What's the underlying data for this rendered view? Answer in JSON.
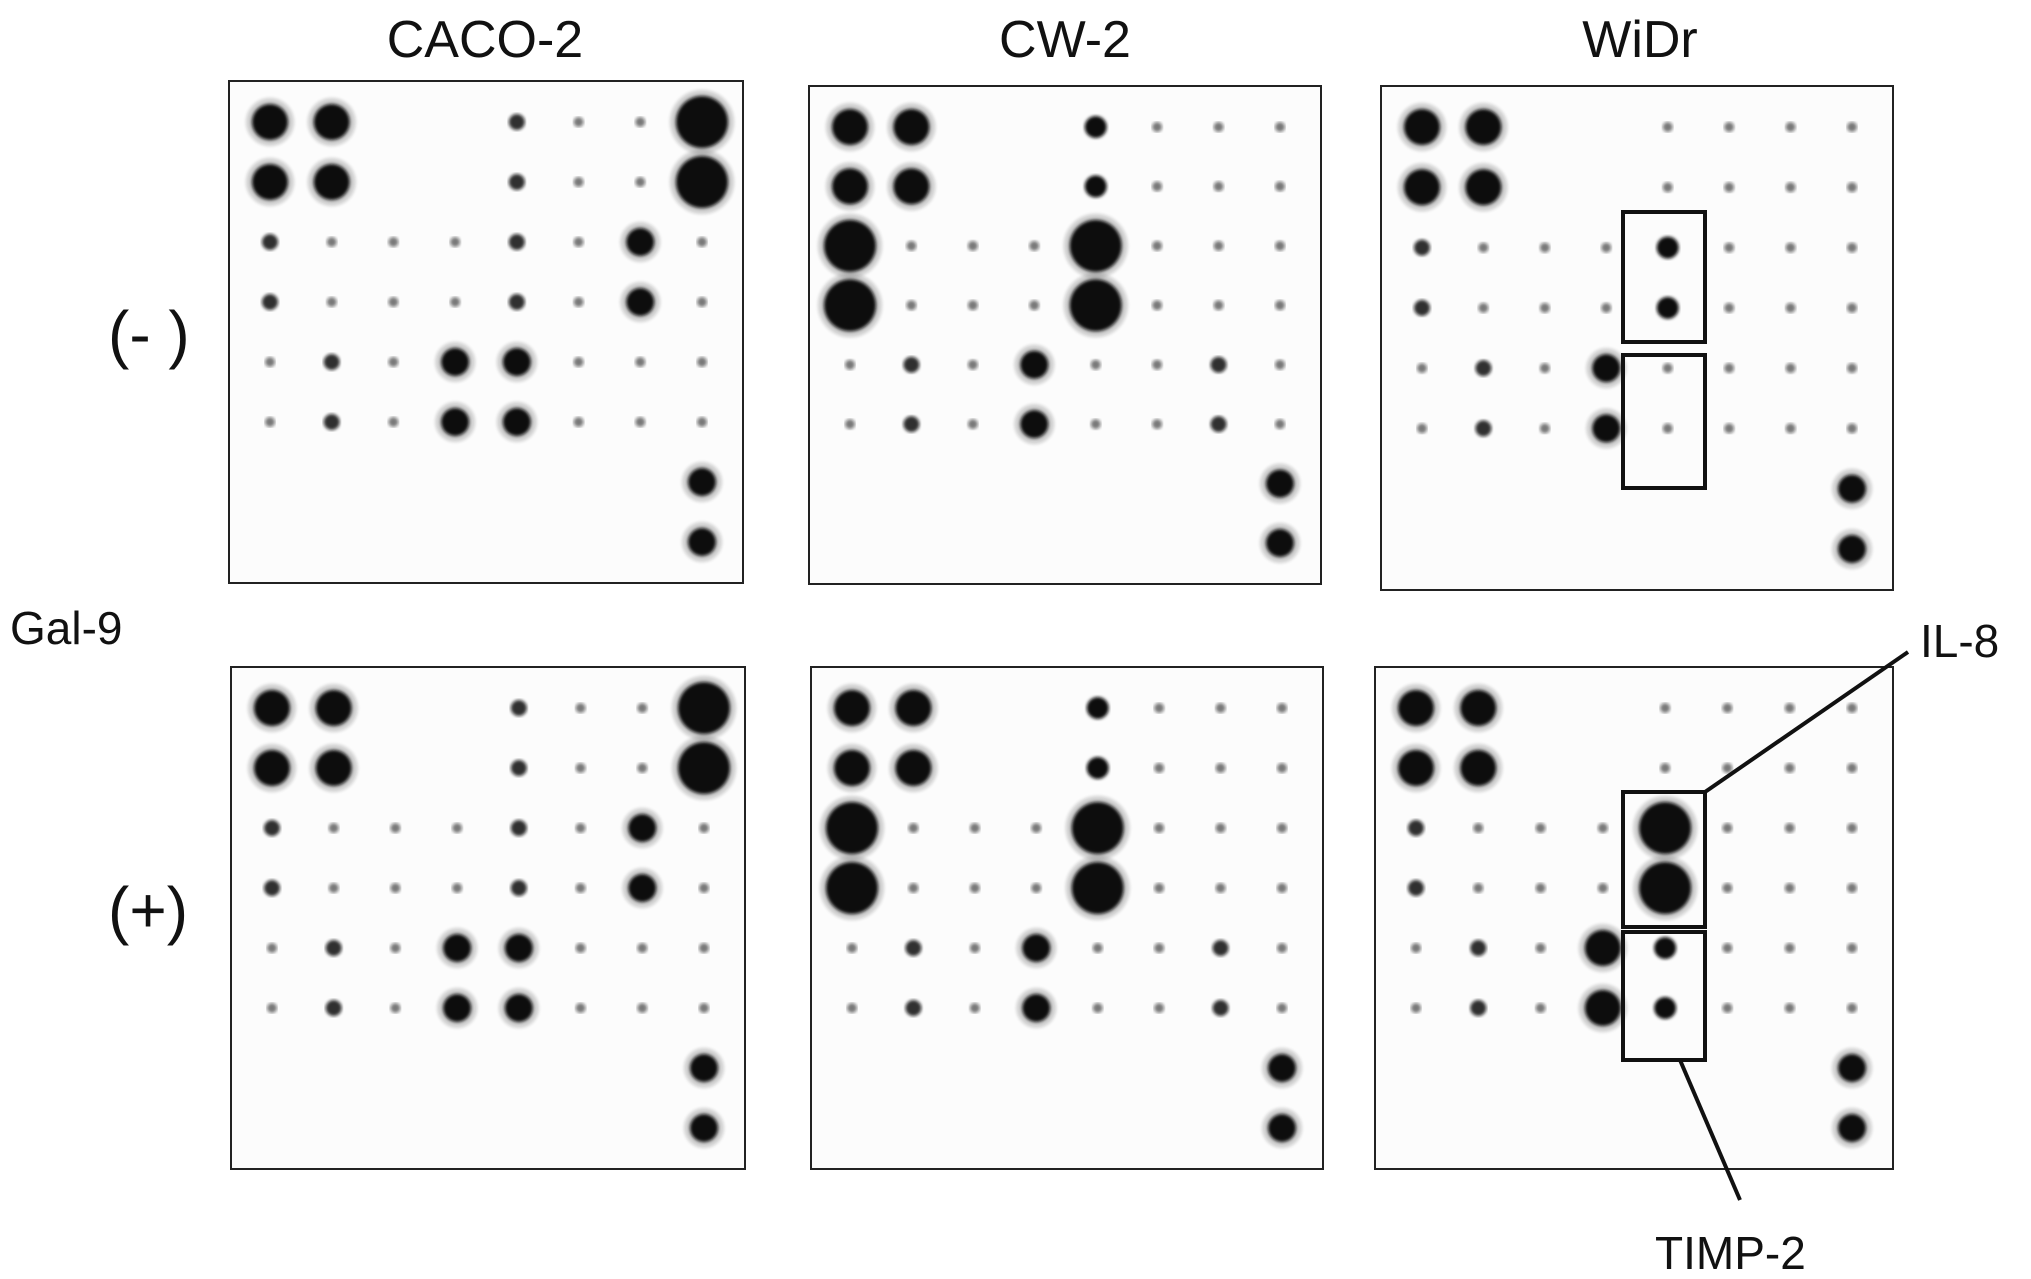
{
  "column_labels": [
    "CACO-2",
    "CW-2",
    "WiDr"
  ],
  "row_labels": [
    "(- )",
    "(+)"
  ],
  "treatment_label": "Gal-9",
  "annotations": {
    "il8": "IL-8",
    "timp2": "TIMP-2"
  },
  "colors": {
    "spot": "#0a0a0a",
    "membrane": "#fcfcfc",
    "frame": "#222222",
    "highlight_box": "#111111"
  },
  "blots": {
    "CACO-2": {
      "minus": [
        [
          5,
          5,
          0,
          0,
          2,
          1,
          1,
          7
        ],
        [
          5,
          5,
          0,
          0,
          2,
          1,
          1,
          7
        ],
        [
          2,
          1,
          1,
          1,
          2,
          1,
          4,
          1
        ],
        [
          2,
          1,
          1,
          1,
          2,
          1,
          4,
          1
        ],
        [
          1,
          2,
          1,
          4,
          4,
          1,
          1,
          1
        ],
        [
          1,
          2,
          1,
          4,
          4,
          1,
          1,
          1
        ],
        [
          0,
          0,
          0,
          0,
          0,
          0,
          0,
          4
        ],
        [
          0,
          0,
          0,
          0,
          0,
          0,
          0,
          4
        ]
      ],
      "plus": [
        [
          5,
          5,
          0,
          0,
          2,
          1,
          1,
          7
        ],
        [
          5,
          5,
          0,
          0,
          2,
          1,
          1,
          7
        ],
        [
          2,
          1,
          1,
          1,
          2,
          1,
          4,
          1
        ],
        [
          2,
          1,
          1,
          1,
          2,
          1,
          4,
          1
        ],
        [
          1,
          2,
          1,
          4,
          4,
          1,
          1,
          1
        ],
        [
          1,
          2,
          1,
          4,
          4,
          1,
          1,
          1
        ],
        [
          0,
          0,
          0,
          0,
          0,
          0,
          0,
          4
        ],
        [
          0,
          0,
          0,
          0,
          0,
          0,
          0,
          4
        ]
      ]
    },
    "CW-2": {
      "minus": [
        [
          5,
          5,
          0,
          0,
          3,
          1,
          1,
          1
        ],
        [
          5,
          5,
          0,
          0,
          3,
          1,
          1,
          1
        ],
        [
          7,
          1,
          1,
          1,
          7,
          1,
          1,
          1
        ],
        [
          7,
          1,
          1,
          1,
          7,
          1,
          1,
          1
        ],
        [
          1,
          2,
          1,
          4,
          1,
          1,
          2,
          1
        ],
        [
          1,
          2,
          1,
          4,
          1,
          1,
          2,
          1
        ],
        [
          0,
          0,
          0,
          0,
          0,
          0,
          0,
          4
        ],
        [
          0,
          0,
          0,
          0,
          0,
          0,
          0,
          4
        ]
      ],
      "plus": [
        [
          5,
          5,
          0,
          0,
          3,
          1,
          1,
          1
        ],
        [
          5,
          5,
          0,
          0,
          3,
          1,
          1,
          1
        ],
        [
          7,
          1,
          1,
          1,
          7,
          1,
          1,
          1
        ],
        [
          7,
          1,
          1,
          1,
          7,
          1,
          1,
          1
        ],
        [
          1,
          2,
          1,
          4,
          1,
          1,
          2,
          1
        ],
        [
          1,
          2,
          1,
          4,
          1,
          1,
          2,
          1
        ],
        [
          0,
          0,
          0,
          0,
          0,
          0,
          0,
          4
        ],
        [
          0,
          0,
          0,
          0,
          0,
          0,
          0,
          4
        ]
      ]
    },
    "WiDr": {
      "minus": [
        [
          5,
          5,
          0,
          0,
          1,
          1,
          1,
          1
        ],
        [
          5,
          5,
          0,
          0,
          1,
          1,
          1,
          1
        ],
        [
          2,
          1,
          1,
          1,
          3,
          1,
          1,
          1
        ],
        [
          2,
          1,
          1,
          1,
          3,
          1,
          1,
          1
        ],
        [
          1,
          2,
          1,
          4,
          1,
          1,
          1,
          1
        ],
        [
          1,
          2,
          1,
          4,
          1,
          1,
          1,
          1
        ],
        [
          0,
          0,
          0,
          0,
          0,
          0,
          0,
          4
        ],
        [
          0,
          0,
          0,
          0,
          0,
          0,
          0,
          4
        ]
      ],
      "plus": [
        [
          5,
          5,
          0,
          0,
          1,
          1,
          1,
          1
        ],
        [
          5,
          5,
          0,
          0,
          1,
          1,
          1,
          1
        ],
        [
          2,
          1,
          1,
          1,
          7,
          1,
          1,
          1
        ],
        [
          2,
          1,
          1,
          1,
          7,
          1,
          1,
          1
        ],
        [
          1,
          2,
          1,
          5,
          3,
          1,
          1,
          1
        ],
        [
          1,
          2,
          1,
          5,
          3,
          1,
          1,
          1
        ],
        [
          0,
          0,
          0,
          0,
          0,
          0,
          0,
          4
        ],
        [
          0,
          0,
          0,
          0,
          0,
          0,
          0,
          4
        ]
      ]
    }
  }
}
